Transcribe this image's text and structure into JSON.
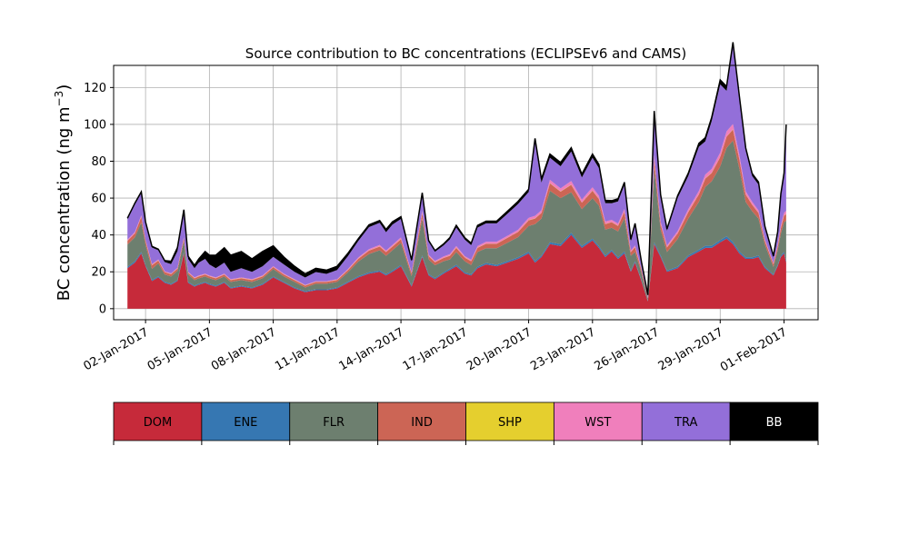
{
  "chart_data": {
    "type": "area",
    "title": "Source contribution to BC concentrations (ECLIPSEv6 and CAMS)",
    "ylabel": "BC concentration (ng m",
    "ylabel_superscript": "−3",
    "ylabel_close": ")",
    "xlabel": "",
    "ylim": [
      -6,
      132
    ],
    "yticks": [
      0,
      20,
      40,
      60,
      80,
      100,
      120
    ],
    "grid": true,
    "x_start_date": "2017-01-01",
    "x_tick_labels": [
      "02-Jan-2017",
      "05-Jan-2017",
      "08-Jan-2017",
      "11-Jan-2017",
      "14-Jan-2017",
      "17-Jan-2017",
      "20-Jan-2017",
      "23-Jan-2017",
      "26-Jan-2017",
      "29-Jan-2017",
      "01-Feb-2017"
    ],
    "x_tick_days": [
      1,
      4,
      7,
      10,
      13,
      16,
      19,
      22,
      25,
      28,
      31
    ],
    "xlim_days": [
      -0.5,
      32.6
    ],
    "x_days": [
      0.15,
      0.5,
      0.8,
      1.0,
      1.3,
      1.6,
      1.9,
      2.2,
      2.5,
      2.8,
      3.0,
      3.3,
      3.5,
      3.8,
      4.0,
      4.3,
      4.7,
      5.0,
      5.5,
      6.0,
      6.5,
      7.0,
      7.5,
      8.0,
      8.5,
      9.0,
      9.5,
      10.0,
      10.5,
      11.0,
      11.5,
      12.0,
      12.3,
      12.6,
      13.0,
      13.5,
      14.0,
      14.3,
      14.6,
      15.0,
      15.3,
      15.6,
      16.0,
      16.3,
      16.6,
      17.0,
      17.5,
      18.0,
      18.5,
      19.0,
      19.3,
      19.6,
      20.0,
      20.5,
      21.0,
      21.5,
      22.0,
      22.3,
      22.6,
      22.9,
      23.2,
      23.5,
      23.8,
      24.0,
      24.3,
      24.6,
      24.9,
      25.2,
      25.5,
      26.0,
      26.5,
      27.0,
      27.3,
      27.6,
      28.0,
      28.3,
      28.6,
      28.9,
      29.2,
      29.5,
      29.8,
      30.1,
      30.5,
      30.7,
      30.85,
      31.0,
      31.1
    ],
    "series": [
      {
        "name": "DOM",
        "color": "#c62a3a",
        "values": [
          22,
          25,
          30,
          23,
          15,
          17,
          14,
          13,
          15,
          30,
          14,
          12,
          13,
          14,
          13,
          12,
          14,
          11,
          12,
          11,
          13,
          17,
          14,
          11,
          9,
          10,
          10,
          11,
          14,
          17,
          19,
          20,
          18,
          20,
          23,
          12,
          28,
          18,
          16,
          19,
          21,
          23,
          19,
          18,
          22,
          24,
          23,
          25,
          27,
          30,
          25,
          28,
          35,
          34,
          40,
          33,
          37,
          33,
          28,
          31,
          27,
          30,
          20,
          25,
          15,
          4,
          35,
          28,
          20,
          22,
          28,
          31,
          33,
          33,
          36,
          38,
          35,
          30,
          27,
          27,
          28,
          22,
          18,
          23,
          28,
          30,
          25
        ]
      },
      {
        "name": "ENE",
        "color": "#3677b2",
        "values": [
          0.8,
          0.8,
          0.8,
          0.7,
          0.6,
          0.6,
          0.6,
          0.5,
          0.5,
          0.6,
          0.5,
          0.5,
          0.5,
          0.5,
          0.5,
          0.5,
          0.5,
          0.5,
          0.5,
          0.5,
          0.5,
          0.5,
          0.5,
          0.5,
          0.5,
          0.5,
          0.5,
          0.5,
          0.6,
          0.6,
          0.7,
          0.7,
          0.7,
          0.7,
          0.7,
          0.6,
          0.8,
          0.7,
          0.6,
          0.7,
          0.7,
          0.8,
          0.7,
          0.7,
          0.8,
          0.8,
          0.8,
          0.8,
          0.8,
          0.9,
          0.9,
          0.9,
          1,
          1,
          1.2,
          1,
          1,
          1,
          0.9,
          0.9,
          0.9,
          1,
          0.7,
          0.8,
          0.5,
          0.3,
          1,
          0.9,
          0.7,
          0.8,
          0.9,
          1,
          1.1,
          1.1,
          1.2,
          1.3,
          1.2,
          1,
          0.9,
          0.9,
          0.9,
          0.7,
          0.6,
          0.7,
          0.8,
          0.9,
          0.8
        ]
      },
      {
        "name": "FLR",
        "color": "#6d7f6f",
        "values": [
          12,
          13,
          16,
          11,
          6,
          7,
          4,
          4,
          5,
          6,
          4,
          3,
          3,
          3,
          3,
          3,
          3,
          3,
          3,
          3,
          3,
          4,
          3,
          3,
          2,
          3,
          3,
          3,
          5,
          8,
          10,
          11,
          10,
          11,
          12,
          5,
          20,
          8,
          7,
          6,
          5,
          7,
          6,
          5,
          8,
          8,
          9,
          10,
          11,
          14,
          20,
          20,
          28,
          25,
          22,
          20,
          22,
          22,
          14,
          12,
          14,
          18,
          8,
          5,
          4,
          1,
          40,
          14,
          10,
          15,
          20,
          26,
          32,
          35,
          40,
          48,
          55,
          45,
          30,
          25,
          20,
          12,
          4,
          8,
          12,
          16,
          22
        ]
      },
      {
        "name": "IND",
        "color": "#cc6555",
        "values": [
          2,
          2,
          3,
          2,
          2,
          1.5,
          1.2,
          1.2,
          1.2,
          1.5,
          1,
          1,
          1,
          1,
          1,
          1,
          1,
          1,
          1,
          1,
          1,
          1,
          1,
          1,
          1,
          1,
          1,
          1,
          1.2,
          1.5,
          1.8,
          2,
          2,
          2,
          2,
          1.5,
          3,
          1.8,
          1.6,
          1.8,
          2,
          2.2,
          2,
          2,
          2.2,
          2.4,
          2.4,
          2.6,
          2.8,
          3,
          3,
          3,
          4,
          3.5,
          4,
          3.5,
          4,
          3.5,
          3,
          3,
          3,
          3.5,
          2,
          2.5,
          1.5,
          0.5,
          5,
          3,
          2.5,
          3,
          3.5,
          4,
          4.5,
          4.5,
          5,
          6,
          6,
          5,
          4,
          3.5,
          3,
          2,
          1.5,
          2,
          3,
          3.5,
          3.5
        ]
      },
      {
        "name": "SHP",
        "color": "#e5cf2e",
        "values": [
          0.1,
          0.1,
          0.1,
          0.1,
          0.1,
          0.1,
          0.1,
          0.1,
          0.1,
          0.1,
          0.1,
          0.1,
          0.1,
          0.1,
          0.1,
          0.1,
          0.1,
          0.1,
          0.1,
          0.1,
          0.1,
          0.1,
          0.1,
          0.1,
          0.1,
          0.1,
          0.1,
          0.1,
          0.1,
          0.1,
          0.1,
          0.1,
          0.1,
          0.1,
          0.1,
          0.1,
          0.1,
          0.1,
          0.1,
          0.1,
          0.1,
          0.1,
          0.1,
          0.1,
          0.1,
          0.1,
          0.1,
          0.1,
          0.1,
          0.1,
          0.1,
          0.1,
          0.1,
          0.1,
          0.1,
          0.1,
          0.1,
          0.1,
          0.1,
          0.1,
          0.1,
          0.1,
          0.1,
          0.1,
          0.1,
          0.1,
          0.1,
          0.1,
          0.1,
          0.1,
          0.1,
          0.1,
          0.1,
          0.1,
          0.1,
          0.1,
          0.1,
          0.1,
          0.1,
          0.1,
          0.1,
          0.1,
          0.1,
          0.1,
          0.1,
          0.1,
          0.1
        ]
      },
      {
        "name": "WST",
        "color": "#f07fbc",
        "values": [
          0.6,
          0.7,
          0.8,
          0.6,
          0.5,
          0.5,
          0.4,
          0.4,
          0.4,
          0.5,
          0.4,
          0.4,
          0.4,
          0.4,
          0.4,
          0.4,
          0.4,
          0.4,
          0.4,
          0.4,
          0.4,
          0.5,
          0.4,
          0.4,
          0.3,
          0.3,
          0.3,
          0.4,
          0.5,
          0.6,
          0.7,
          0.8,
          0.7,
          0.8,
          0.9,
          0.5,
          1.2,
          0.7,
          0.6,
          0.7,
          0.8,
          0.9,
          0.7,
          0.7,
          0.9,
          1,
          1,
          1,
          1.1,
          1.3,
          1.4,
          1.4,
          1.8,
          1.7,
          2,
          1.6,
          1.8,
          1.7,
          1.3,
          1.2,
          1.2,
          1.5,
          0.8,
          0.9,
          0.6,
          0.2,
          2.2,
          1.3,
          1,
          1.2,
          1.5,
          1.8,
          2.1,
          2.1,
          2.4,
          2.8,
          2.9,
          2.3,
          1.7,
          1.5,
          1.3,
          0.9,
          0.6,
          0.9,
          1.3,
          1.6,
          1.7
        ]
      },
      {
        "name": "TRA",
        "color": "#936fd9",
        "values": [
          11,
          15,
          12,
          9,
          9,
          5,
          5,
          5,
          9,
          13,
          7,
          5,
          7,
          8,
          6,
          5,
          6,
          4,
          5,
          4,
          5,
          5,
          5,
          4,
          4,
          5,
          4,
          5,
          7,
          9,
          12,
          12,
          10,
          11,
          10,
          6,
          9,
          7,
          5,
          6,
          8,
          10,
          9,
          8,
          10,
          10,
          10,
          12,
          14,
          14,
          40,
          15,
          12,
          12,
          16,
          12,
          16,
          15,
          10,
          9,
          12,
          13,
          5,
          11,
          3,
          1,
          22,
          13,
          8,
          18,
          18,
          24,
          18,
          26,
          37,
          22,
          42,
          30,
          22,
          14,
          14,
          6,
          3,
          6,
          16,
          20,
          45
        ]
      },
      {
        "name": "BB",
        "color": "#000000",
        "values": [
          0.6,
          0.7,
          0.7,
          0.7,
          0.6,
          0.6,
          0.8,
          1.5,
          2,
          2,
          1.5,
          1.5,
          2,
          4,
          5,
          7,
          8,
          9,
          9,
          7,
          8,
          6,
          4,
          3,
          2,
          2,
          2,
          2,
          1.5,
          1.2,
          1.2,
          1.2,
          1.5,
          1.5,
          1.2,
          0.7,
          0.8,
          0.7,
          0.6,
          0.8,
          1,
          1.2,
          1,
          1,
          1.2,
          1.2,
          1.2,
          1.3,
          1.4,
          1.5,
          2,
          2,
          2,
          2,
          2,
          1.8,
          2,
          2,
          1.5,
          1.4,
          1.4,
          1.5,
          1,
          1,
          0.8,
          0.4,
          2,
          1.5,
          1,
          1.2,
          1.5,
          1.8,
          2,
          2,
          2.4,
          2.4,
          2.4,
          2,
          1.5,
          1.4,
          1.4,
          1,
          0.8,
          1,
          1.2,
          1.5,
          1.8
        ]
      }
    ],
    "legend": {
      "placement": "bottom",
      "entries": [
        "DOM",
        "ENE",
        "FLR",
        "IND",
        "SHP",
        "WST",
        "TRA",
        "BB"
      ],
      "colors": [
        "#c62a3a",
        "#3677b2",
        "#6d7f6f",
        "#cc6555",
        "#e5cf2e",
        "#f07fbc",
        "#936fd9",
        "#000000"
      ],
      "text_colors": [
        "#000000",
        "#000000",
        "#000000",
        "#000000",
        "#000000",
        "#000000",
        "#000000",
        "#ffffff"
      ]
    }
  }
}
